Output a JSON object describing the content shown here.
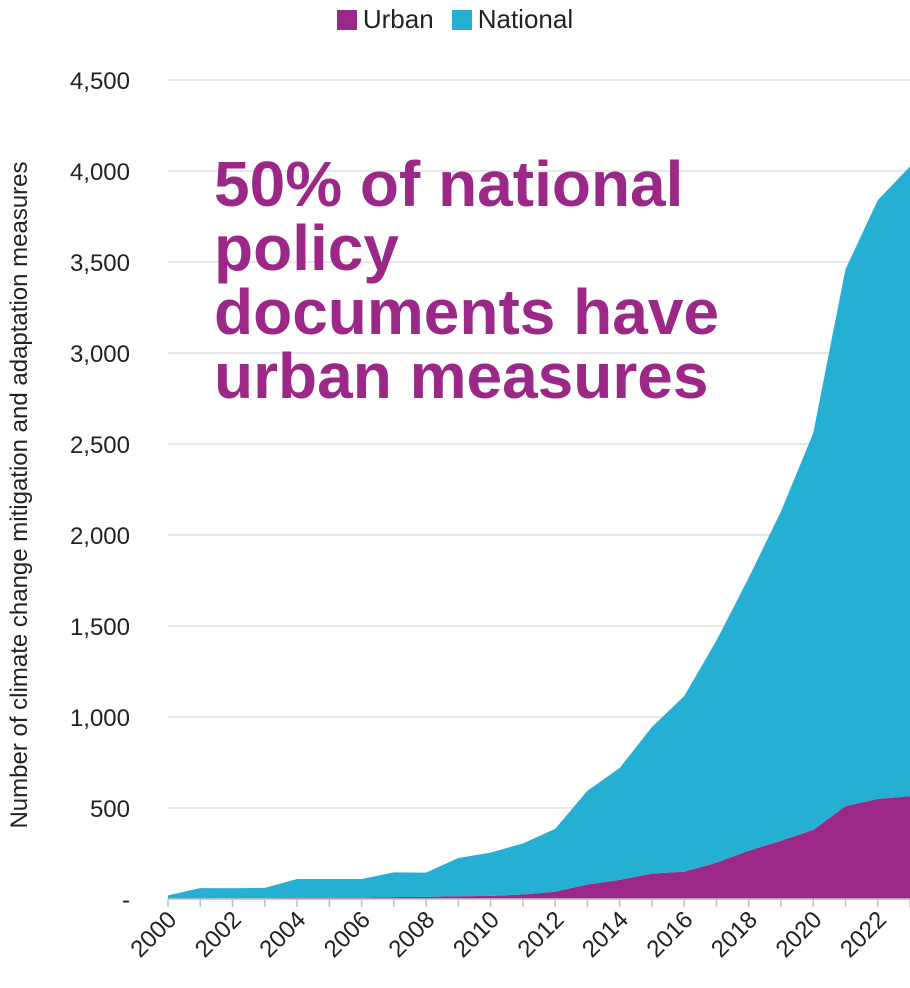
{
  "chart_data": {
    "type": "area",
    "stacked": true,
    "x": [
      2000,
      2001,
      2002,
      2003,
      2004,
      2005,
      2006,
      2007,
      2008,
      2009,
      2010,
      2011,
      2012,
      2013,
      2014,
      2015,
      2016,
      2017,
      2018,
      2019,
      2020,
      2021,
      2022,
      2023
    ],
    "x_tick_labels": [
      "2000",
      "2002",
      "2004",
      "2006",
      "2008",
      "2010",
      "2012",
      "2014",
      "2016",
      "2018",
      "2020",
      "2022"
    ],
    "series": [
      {
        "name": "Urban",
        "color": "#9b2786",
        "values": [
          2,
          3,
          4,
          4,
          6,
          6,
          7,
          10,
          12,
          15,
          17,
          25,
          40,
          80,
          105,
          140,
          150,
          200,
          265,
          320,
          380,
          510,
          550,
          565
        ]
      },
      {
        "name": "National",
        "color": "#25b0d3",
        "values": [
          18,
          57,
          55,
          57,
          104,
          104,
          103,
          136,
          133,
          210,
          238,
          280,
          345,
          515,
          615,
          805,
          965,
          1220,
          1500,
          1810,
          2180,
          2950,
          3290,
          3460
        ]
      }
    ],
    "ylabel": "Number of climate change mitigation and adaptation measures",
    "ylim": [
      0,
      4500
    ],
    "y_ticks": [
      0,
      500,
      1000,
      1500,
      2000,
      2500,
      3000,
      3500,
      4000,
      4500
    ],
    "y_tick_labels": [
      "-",
      "500",
      "1,000",
      "1,500",
      "2,000",
      "2,500",
      "3,000",
      "3,500",
      "4,000",
      "4,500"
    ],
    "grid": true,
    "legend_position": "top-center",
    "annotation": "50% of national\npolicy\ndocuments have\nurban measures",
    "annotation_color": "#9b2786"
  }
}
